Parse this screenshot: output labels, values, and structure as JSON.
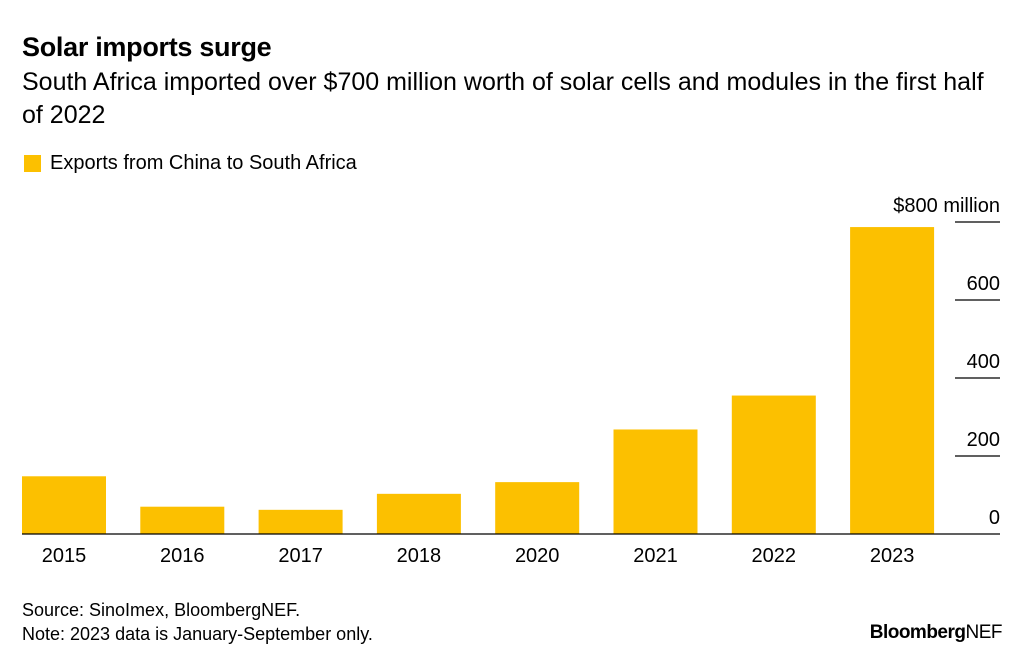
{
  "header": {
    "title": "Solar imports surge",
    "subtitle": "South Africa imported over $700 million worth of solar cells and modules in the first half of 2022"
  },
  "legend": {
    "label": "Exports from China to South Africa"
  },
  "footer": {
    "source": "Source: SinoImex, BloombergNEF.",
    "note": "Note: 2023 data is January-September only."
  },
  "logo": {
    "text_bold": "Bloomberg",
    "text_light": "NEF"
  },
  "colors": {
    "bar": "#FCC000",
    "axis": "#000000"
  },
  "chart_data": {
    "type": "bar",
    "categories": [
      "2015",
      "2016",
      "2017",
      "2018",
      "2020",
      "2021",
      "2022",
      "2023"
    ],
    "series": [
      {
        "name": "Exports from China to South Africa",
        "values": [
          148,
          70,
          62,
          103,
          133,
          268,
          355,
          787
        ]
      }
    ],
    "yticks": [
      {
        "value": 0,
        "label": "0"
      },
      {
        "value": 200,
        "label": "200"
      },
      {
        "value": 400,
        "label": "400"
      },
      {
        "value": 600,
        "label": "600"
      },
      {
        "value": 800,
        "label": "$800 million"
      }
    ],
    "ylim": [
      0,
      800
    ],
    "y_axis_position": "right",
    "legend_position": "top-left",
    "grid": false
  }
}
